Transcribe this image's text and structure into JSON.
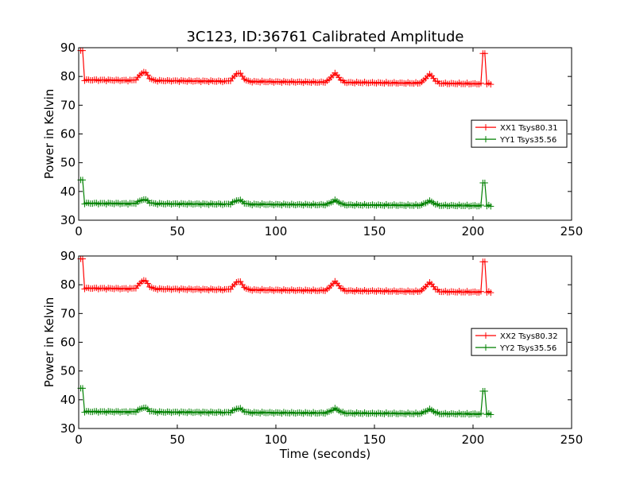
{
  "chart_data": [
    {
      "type": "line",
      "title": "3C123, ID:36761 Calibrated Amplitude",
      "xlabel": "",
      "ylabel": "Power in Kelvin",
      "xlim": [
        0,
        250
      ],
      "ylim": [
        30,
        90
      ],
      "xticks": [
        0,
        50,
        100,
        150,
        200,
        250
      ],
      "yticks": [
        30,
        40,
        50,
        60,
        70,
        80,
        90
      ],
      "legend_position": "center-right",
      "series": [
        {
          "name": "XX1 Tsys80.31",
          "color": "#ff0000",
          "base_start": 78.8,
          "base_end": 77.4,
          "bump_height": 3.0,
          "edge_value": 89.0,
          "spike_value": 88.0
        },
        {
          "name": "YY1 Tsys35.56",
          "color": "#008000",
          "base_start": 35.9,
          "base_end": 35.0,
          "bump_height": 1.5,
          "edge_value": 44.0,
          "spike_value": 43.0
        }
      ],
      "bump_centers": [
        33,
        81,
        130,
        178
      ],
      "spike_time": 205,
      "t_start": 1,
      "t_end": 209
    },
    {
      "type": "line",
      "title": "",
      "xlabel": "Time (seconds)",
      "ylabel": "Power in Kelvin",
      "xlim": [
        0,
        250
      ],
      "ylim": [
        30,
        90
      ],
      "xticks": [
        0,
        50,
        100,
        150,
        200,
        250
      ],
      "yticks": [
        30,
        40,
        50,
        60,
        70,
        80,
        90
      ],
      "legend_position": "center-right",
      "series": [
        {
          "name": "XX2 Tsys80.32",
          "color": "#ff0000",
          "base_start": 78.8,
          "base_end": 77.4,
          "bump_height": 3.0,
          "edge_value": 89.0,
          "spike_value": 88.0
        },
        {
          "name": "YY2 Tsys35.56",
          "color": "#008000",
          "base_start": 35.9,
          "base_end": 35.0,
          "bump_height": 1.5,
          "edge_value": 44.0,
          "spike_value": 43.0
        }
      ],
      "bump_centers": [
        33,
        81,
        130,
        178
      ],
      "spike_time": 205,
      "t_start": 1,
      "t_end": 209
    }
  ]
}
